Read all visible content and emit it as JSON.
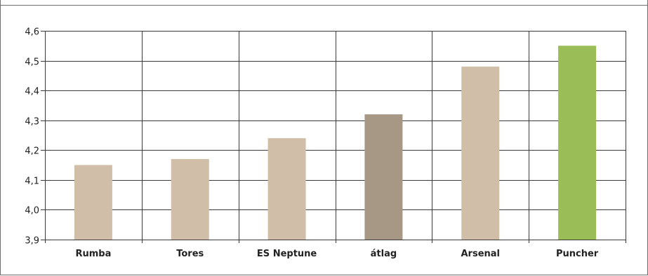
{
  "chart_data": {
    "type": "bar",
    "title": "",
    "xlabel": "",
    "ylabel": "",
    "categories": [
      "Rumba",
      "Tores",
      "ES Neptune",
      "átlag",
      "Arsenal",
      "Puncher"
    ],
    "values": [
      4.15,
      4.17,
      4.24,
      4.32,
      4.48,
      4.55
    ],
    "ylim": [
      3.9,
      4.6
    ],
    "yticks": [
      "3,9",
      "4,0",
      "4,1",
      "4,2",
      "4,3",
      "4,4",
      "4,5",
      "4,6"
    ],
    "grid": true,
    "legend": "none",
    "colors": [
      "#d0bea8",
      "#d0bea8",
      "#d0bea8",
      "#a79886",
      "#d0bea8",
      "#9bbd58"
    ]
  }
}
